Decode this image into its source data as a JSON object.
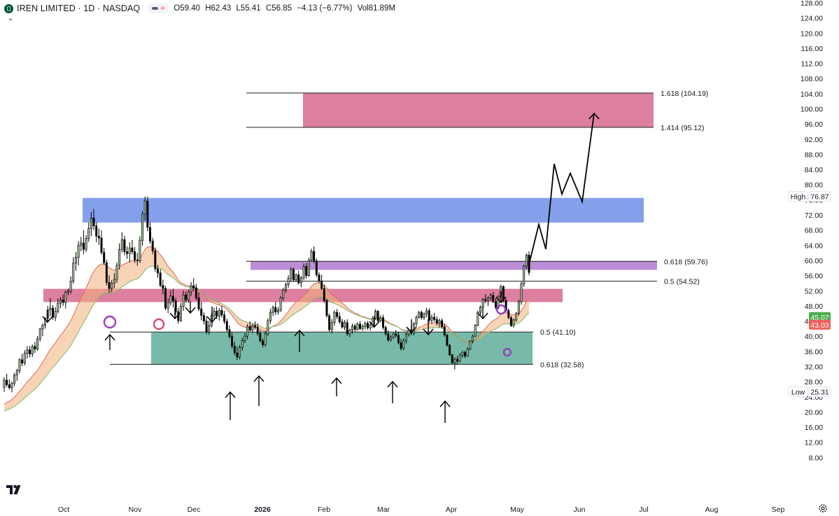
{
  "header": {
    "symbol": "IREN LIMITED · 1D · NASDAQ",
    "open": "O59.40",
    "high": "H62.43",
    "low": "L55.41",
    "close": "C56.85",
    "change": "−4.13 (−6.77%)",
    "volume": "Vol81.89M"
  },
  "colors": {
    "up": "#a9cfa0",
    "down": "#000000",
    "zone_red": "#d6698f",
    "zone_blue": "#6f8fe8",
    "zone_purple": "#b07ad0",
    "zone_green": "#5fae9a",
    "badge_green": "#4caf50",
    "badge_red": "#f0605a"
  },
  "chart_data": {
    "type": "candlestick",
    "title": "",
    "y_axis": {
      "min": 4,
      "max": 128,
      "step": 4,
      "ticks": [
        "8.00",
        "12.00",
        "16.00",
        "20.00",
        "24.00",
        "28.00",
        "32.00",
        "36.00",
        "40.00",
        "44.00",
        "48.00",
        "52.00",
        "56.00",
        "60.00",
        "64.00",
        "68.00",
        "72.00",
        "76.00",
        "80.00",
        "84.00",
        "88.00",
        "92.00",
        "96.00",
        "100.00",
        "104.00",
        "108.00",
        "112.00",
        "116.00",
        "120.00",
        "124.00",
        "128.00"
      ]
    },
    "x_axis": {
      "labels": [
        {
          "text": "Oct",
          "bold": false
        },
        {
          "text": "Nov",
          "bold": false
        },
        {
          "text": "Dec",
          "bold": false
        },
        {
          "text": "2026",
          "bold": true
        },
        {
          "text": "Feb",
          "bold": false
        },
        {
          "text": "Mar",
          "bold": false
        },
        {
          "text": "Apr",
          "bold": false
        },
        {
          "text": "May",
          "bold": false
        },
        {
          "text": "Jun",
          "bold": false
        },
        {
          "text": "Jul",
          "bold": false
        },
        {
          "text": "Aug",
          "bold": false
        },
        {
          "text": "Sep",
          "bold": false
        }
      ]
    },
    "price_badges": [
      {
        "label": "High",
        "value": "76.87",
        "price": 76.87,
        "kind": "outline"
      },
      {
        "label": "",
        "value": "45.07",
        "price": 45.07,
        "kind": "green"
      },
      {
        "label": "",
        "value": "43.03",
        "price": 43.03,
        "kind": "red"
      },
      {
        "label": "Low",
        "value": "25.31",
        "price": 25.31,
        "kind": "outline"
      }
    ],
    "fib_levels": [
      {
        "label": "1.618 (104.19)",
        "price": 104.19
      },
      {
        "label": "1.414 (95.12)",
        "price": 95.12
      },
      {
        "label": "0.618 (59.76)",
        "price": 59.76
      },
      {
        "label": "0.5 (54.52)",
        "price": 54.52
      },
      {
        "label": "0.5 (41.10)",
        "price": 41.1
      },
      {
        "label": "0.618 (32.58)",
        "price": 32.58
      }
    ],
    "zones": [
      {
        "name": "target-zone",
        "color": "#d6698f",
        "top": 104.19,
        "bottom": 95.12
      },
      {
        "name": "resistance-zone",
        "color": "#6f8fe8",
        "top": 76.5,
        "bottom": 70.0
      },
      {
        "name": "fib-zone",
        "color": "#b07ad0",
        "top": 59.76,
        "bottom": 57.5
      },
      {
        "name": "support-resistance-zone",
        "color": "#d6698f",
        "top": 52.5,
        "bottom": 49.0
      },
      {
        "name": "support-zone",
        "color": "#5fae9a",
        "top": 41.0,
        "bottom": 32.58
      }
    ],
    "projection": [
      59.0,
      69.5,
      63.0,
      85.5,
      77.5,
      83.0,
      75.5,
      98.8
    ],
    "candles": [
      [
        26.5,
        29.2,
        25.3,
        28.4
      ],
      [
        28.4,
        30.1,
        26.6,
        27.2
      ],
      [
        27.2,
        28.6,
        25.9,
        26.4
      ],
      [
        26.4,
        28.0,
        25.2,
        27.6
      ],
      [
        27.6,
        30.3,
        26.8,
        29.8
      ],
      [
        29.8,
        31.4,
        28.2,
        30.9
      ],
      [
        30.9,
        34.2,
        30.2,
        33.8
      ],
      [
        33.8,
        35.3,
        32.1,
        32.9
      ],
      [
        32.9,
        36.3,
        32.3,
        35.5
      ],
      [
        35.5,
        37.4,
        34.1,
        36.4
      ],
      [
        36.4,
        37.4,
        34.4,
        35.3
      ],
      [
        35.3,
        37.8,
        34.5,
        37.3
      ],
      [
        37.3,
        38.5,
        35.6,
        36.6
      ],
      [
        36.6,
        40.0,
        36.2,
        39.3
      ],
      [
        39.3,
        42.2,
        38.6,
        41.9
      ],
      [
        41.9,
        43.4,
        40.0,
        42.9
      ],
      [
        42.9,
        45.0,
        42.0,
        44.7
      ],
      [
        44.7,
        48.0,
        43.5,
        46.9
      ],
      [
        46.9,
        50.0,
        45.2,
        47.4
      ],
      [
        47.4,
        48.2,
        44.3,
        45.0
      ],
      [
        45.0,
        47.7,
        44.0,
        46.6
      ],
      [
        46.6,
        50.0,
        46.0,
        48.7
      ],
      [
        48.7,
        50.3,
        47.4,
        49.6
      ],
      [
        49.6,
        51.0,
        48.0,
        48.9
      ],
      [
        48.9,
        52.1,
        47.3,
        51.6
      ],
      [
        51.6,
        52.6,
        50.8,
        51.9
      ],
      [
        51.9,
        55.8,
        51.2,
        54.5
      ],
      [
        54.5,
        60.9,
        53.9,
        59.3
      ],
      [
        59.3,
        62.2,
        57.3,
        60.8
      ],
      [
        60.8,
        65.1,
        58.7,
        64.0
      ],
      [
        64.0,
        66.2,
        62.4,
        64.6
      ],
      [
        64.6,
        68.0,
        61.6,
        62.9
      ],
      [
        62.9,
        66.7,
        62.2,
        65.8
      ],
      [
        65.8,
        70.0,
        64.9,
        68.4
      ],
      [
        68.4,
        72.8,
        66.4,
        71.2
      ],
      [
        71.2,
        73.6,
        68.0,
        69.1
      ],
      [
        69.1,
        70.1,
        64.8,
        66.4
      ],
      [
        66.4,
        68.4,
        64.1,
        65.9
      ],
      [
        65.9,
        67.9,
        61.5,
        62.1
      ],
      [
        62.1,
        63.3,
        58.8,
        59.4
      ],
      [
        59.4,
        60.2,
        53.4,
        54.2
      ],
      [
        54.2,
        56.1,
        51.4,
        52.6
      ],
      [
        52.6,
        54.8,
        51.6,
        54.0
      ],
      [
        54.0,
        56.6,
        52.6,
        55.0
      ],
      [
        55.0,
        59.5,
        54.1,
        58.7
      ],
      [
        58.7,
        64.5,
        57.6,
        62.9
      ],
      [
        62.9,
        67.4,
        62.1,
        65.5
      ],
      [
        65.5,
        66.5,
        61.4,
        62.3
      ],
      [
        62.3,
        63.7,
        60.4,
        61.8
      ],
      [
        61.8,
        64.8,
        59.5,
        63.3
      ],
      [
        63.3,
        65.4,
        61.6,
        62.3
      ],
      [
        62.3,
        63.5,
        59.3,
        60.1
      ],
      [
        60.1,
        62.0,
        58.6,
        59.9
      ],
      [
        59.9,
        66.4,
        59.3,
        65.3
      ],
      [
        65.3,
        73.0,
        63.9,
        72.2
      ],
      [
        72.2,
        76.9,
        70.5,
        75.7
      ],
      [
        75.7,
        76.9,
        67.7,
        68.7
      ],
      [
        68.7,
        70.1,
        64.4,
        65.1
      ],
      [
        65.1,
        66.0,
        61.6,
        62.5
      ],
      [
        62.5,
        63.4,
        57.0,
        57.8
      ],
      [
        57.8,
        58.8,
        55.4,
        56.7
      ],
      [
        56.7,
        57.7,
        52.9,
        53.4
      ],
      [
        53.4,
        54.9,
        51.0,
        52.6
      ],
      [
        52.6,
        53.3,
        46.9,
        47.4
      ],
      [
        47.4,
        50.0,
        46.1,
        48.8
      ],
      [
        48.8,
        52.1,
        48.1,
        50.6
      ],
      [
        50.6,
        52.5,
        47.6,
        49.3
      ],
      [
        49.3,
        50.0,
        45.6,
        46.5
      ],
      [
        46.5,
        47.5,
        43.3,
        44.1
      ],
      [
        44.1,
        48.8,
        43.8,
        47.9
      ],
      [
        47.9,
        52.0,
        46.7,
        50.9
      ],
      [
        50.9,
        51.8,
        48.8,
        49.6
      ],
      [
        49.6,
        52.2,
        48.8,
        51.7
      ],
      [
        51.7,
        54.3,
        50.6,
        53.3
      ],
      [
        53.3,
        55.3,
        51.9,
        52.7
      ],
      [
        52.7,
        53.8,
        49.5,
        50.1
      ],
      [
        50.1,
        51.6,
        46.6,
        47.2
      ],
      [
        47.2,
        49.0,
        44.2,
        45.5
      ],
      [
        45.5,
        46.3,
        43.1,
        44.0
      ],
      [
        44.0,
        45.2,
        40.5,
        41.1
      ],
      [
        41.1,
        44.1,
        40.4,
        42.8
      ],
      [
        42.8,
        46.1,
        42.3,
        45.4
      ],
      [
        45.4,
        47.5,
        44.2,
        46.6
      ],
      [
        46.6,
        47.8,
        44.5,
        45.3
      ],
      [
        45.3,
        47.4,
        44.1,
        46.8
      ],
      [
        46.8,
        48.0,
        44.9,
        45.6
      ],
      [
        45.6,
        46.7,
        43.2,
        43.9
      ],
      [
        43.9,
        44.6,
        41.1,
        41.7
      ],
      [
        41.7,
        42.8,
        39.4,
        39.9
      ],
      [
        39.9,
        40.9,
        36.8,
        37.4
      ],
      [
        37.4,
        38.5,
        35.0,
        35.6
      ],
      [
        35.6,
        37.3,
        33.7,
        34.5
      ],
      [
        34.5,
        37.7,
        33.9,
        37.0
      ],
      [
        37.0,
        39.6,
        36.2,
        38.8
      ],
      [
        38.8,
        40.8,
        38.2,
        40.0
      ],
      [
        40.0,
        43.2,
        39.2,
        42.6
      ],
      [
        42.6,
        43.9,
        41.1,
        41.6
      ],
      [
        41.6,
        43.3,
        40.9,
        42.8
      ],
      [
        42.8,
        43.9,
        41.7,
        42.4
      ],
      [
        42.4,
        43.4,
        40.1,
        40.7
      ],
      [
        40.7,
        41.7,
        38.3,
        38.8
      ],
      [
        38.8,
        39.4,
        37.1,
        37.7
      ],
      [
        37.7,
        41.3,
        37.2,
        40.6
      ],
      [
        40.6,
        44.7,
        40.1,
        44.1
      ],
      [
        44.1,
        47.2,
        43.3,
        46.3
      ],
      [
        46.3,
        48.1,
        45.3,
        47.6
      ],
      [
        47.6,
        49.1,
        45.6,
        46.4
      ],
      [
        46.4,
        47.7,
        45.7,
        46.9
      ],
      [
        46.9,
        50.6,
        46.4,
        50.1
      ],
      [
        50.1,
        52.7,
        49.4,
        52.2
      ],
      [
        52.2,
        54.1,
        51.5,
        53.6
      ],
      [
        53.6,
        56.1,
        52.8,
        55.2
      ],
      [
        55.2,
        58.2,
        54.3,
        57.6
      ],
      [
        57.6,
        58.1,
        54.3,
        54.9
      ],
      [
        54.9,
        56.6,
        54.3,
        56.2
      ],
      [
        56.2,
        57.2,
        53.6,
        54.1
      ],
      [
        54.1,
        55.9,
        52.9,
        55.4
      ],
      [
        55.4,
        59.2,
        54.8,
        58.4
      ],
      [
        58.4,
        59.3,
        55.2,
        56.0
      ],
      [
        56.0,
        60.7,
        55.7,
        60.1
      ],
      [
        60.1,
        63.1,
        59.7,
        62.4
      ],
      [
        62.4,
        63.7,
        59.3,
        59.9
      ],
      [
        59.9,
        60.5,
        55.6,
        56.2
      ],
      [
        56.2,
        56.9,
        54.0,
        54.6
      ],
      [
        54.6,
        56.2,
        52.2,
        52.6
      ],
      [
        52.6,
        53.6,
        48.8,
        49.4
      ],
      [
        49.4,
        49.9,
        44.9,
        45.4
      ],
      [
        45.4,
        46.0,
        41.1,
        41.7
      ],
      [
        41.7,
        44.5,
        40.7,
        43.6
      ],
      [
        43.6,
        46.8,
        42.8,
        46.3
      ],
      [
        46.3,
        47.2,
        44.5,
        45.2
      ],
      [
        45.2,
        46.3,
        43.3,
        43.8
      ],
      [
        43.8,
        44.6,
        42.0,
        42.4
      ],
      [
        42.4,
        44.3,
        41.6,
        43.6
      ],
      [
        43.6,
        44.5,
        40.1,
        40.6
      ],
      [
        40.6,
        42.0,
        39.8,
        41.6
      ],
      [
        41.6,
        43.3,
        40.7,
        42.7
      ],
      [
        42.7,
        43.3,
        41.2,
        41.8
      ],
      [
        41.8,
        43.7,
        41.4,
        43.2
      ],
      [
        43.2,
        44.0,
        41.6,
        42.0
      ],
      [
        42.0,
        43.1,
        41.4,
        42.6
      ],
      [
        42.6,
        43.9,
        41.8,
        43.4
      ],
      [
        43.4,
        44.0,
        41.7,
        42.2
      ],
      [
        42.2,
        43.6,
        41.5,
        43.0
      ],
      [
        43.0,
        45.3,
        42.2,
        44.8
      ],
      [
        44.8,
        47.1,
        44.4,
        46.6
      ],
      [
        46.6,
        46.9,
        43.4,
        44.1
      ],
      [
        44.1,
        45.5,
        43.7,
        44.9
      ],
      [
        44.9,
        45.7,
        41.7,
        42.3
      ],
      [
        42.3,
        42.8,
        40.1,
        40.6
      ],
      [
        40.6,
        41.6,
        38.5,
        39.0
      ],
      [
        39.0,
        40.3,
        38.6,
        39.8
      ],
      [
        39.8,
        40.9,
        39.2,
        40.6
      ],
      [
        40.6,
        41.6,
        39.6,
        40.2
      ],
      [
        40.2,
        41.0,
        37.8,
        38.3
      ],
      [
        38.3,
        39.3,
        36.2,
        36.8
      ],
      [
        36.8,
        39.4,
        36.3,
        38.8
      ],
      [
        38.8,
        41.1,
        38.1,
        40.5
      ],
      [
        40.5,
        42.1,
        39.9,
        41.7
      ],
      [
        41.7,
        42.4,
        40.2,
        40.8
      ],
      [
        40.8,
        43.7,
        40.2,
        43.3
      ],
      [
        43.3,
        45.5,
        42.5,
        45.0
      ],
      [
        45.0,
        46.7,
        44.6,
        46.3
      ],
      [
        46.3,
        46.8,
        44.4,
        44.9
      ],
      [
        44.9,
        46.3,
        44.3,
        45.9
      ],
      [
        45.9,
        47.5,
        45.0,
        46.7
      ],
      [
        46.7,
        47.4,
        43.6,
        44.2
      ],
      [
        44.2,
        45.7,
        43.3,
        45.0
      ],
      [
        45.0,
        46.2,
        43.8,
        44.4
      ],
      [
        44.4,
        45.2,
        42.8,
        43.4
      ],
      [
        43.4,
        44.7,
        42.3,
        44.1
      ],
      [
        44.1,
        44.7,
        42.0,
        42.5
      ],
      [
        42.5,
        43.2,
        39.8,
        40.3
      ],
      [
        40.3,
        40.6,
        37.2,
        37.6
      ],
      [
        37.6,
        38.0,
        34.7,
        35.1
      ],
      [
        35.1,
        35.3,
        32.7,
        33.0
      ],
      [
        33.0,
        34.5,
        31.2,
        33.9
      ],
      [
        33.9,
        34.8,
        32.5,
        33.4
      ],
      [
        33.4,
        35.5,
        33.1,
        35.0
      ],
      [
        35.0,
        36.2,
        34.3,
        35.7
      ],
      [
        35.7,
        36.2,
        34.2,
        34.8
      ],
      [
        34.8,
        37.1,
        34.6,
        36.6
      ],
      [
        36.6,
        39.0,
        36.3,
        38.7
      ],
      [
        38.7,
        40.4,
        38.1,
        40.0
      ],
      [
        40.0,
        43.2,
        39.9,
        42.9
      ],
      [
        42.9,
        46.7,
        42.6,
        46.3
      ],
      [
        46.3,
        48.1,
        45.5,
        47.7
      ],
      [
        47.7,
        50.1,
        47.2,
        49.7
      ],
      [
        49.7,
        51.1,
        48.7,
        49.4
      ],
      [
        49.4,
        50.5,
        48.0,
        50.1
      ],
      [
        50.1,
        51.3,
        49.4,
        50.8
      ],
      [
        50.8,
        51.7,
        48.7,
        49.1
      ],
      [
        49.1,
        50.0,
        47.1,
        47.6
      ],
      [
        47.6,
        50.9,
        47.1,
        50.4
      ],
      [
        50.4,
        53.6,
        49.7,
        53.1
      ],
      [
        53.1,
        53.4,
        48.9,
        49.4
      ],
      [
        49.4,
        50.0,
        46.3,
        46.8
      ],
      [
        46.8,
        47.3,
        44.5,
        44.9
      ],
      [
        44.9,
        45.4,
        42.4,
        42.8
      ],
      [
        42.8,
        44.7,
        42.3,
        44.3
      ],
      [
        44.3,
        46.4,
        43.8,
        46.0
      ],
      [
        46.0,
        49.6,
        45.4,
        49.1
      ],
      [
        49.1,
        54.4,
        48.3,
        53.8
      ],
      [
        53.8,
        58.9,
        53.0,
        58.5
      ],
      [
        58.5,
        61.9,
        57.7,
        61.4
      ],
      [
        61.4,
        62.4,
        56.1,
        56.8
      ]
    ]
  }
}
